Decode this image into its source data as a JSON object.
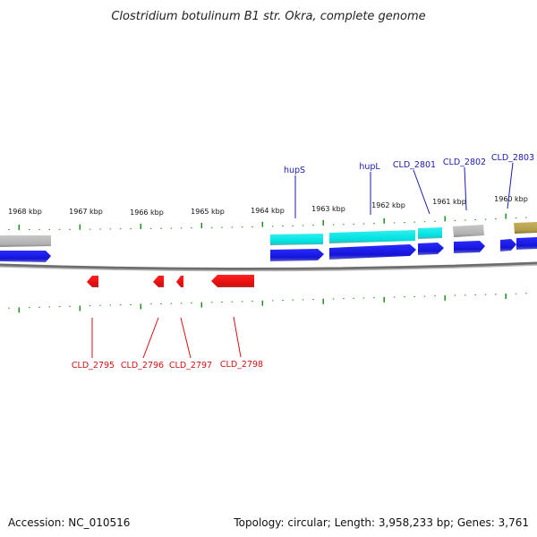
{
  "title": "Clostridium botulinum B1 str. Okra, complete genome",
  "footer": {
    "accession": "Accession: NC_010516",
    "summary": "Topology: circular; Length: 3,958,233 bp; Genes: 3,761"
  },
  "ticks": [
    "1968 kbp",
    "1967 kbp",
    "1966 kbp",
    "1965 kbp",
    "1964 kbp",
    "1963 kbp",
    "1962 kbp",
    "1961 kbp",
    "1960 kbp"
  ],
  "labels_top": [
    "hupS",
    "hupL",
    "CLD_2801",
    "CLD_2802",
    "CLD_2803"
  ],
  "labels_bottom": [
    "CLD_2795",
    "CLD_2796",
    "CLD_2797",
    "CLD_2798"
  ],
  "colors": {
    "forward_cds": "#1414e6",
    "reverse_cds": "#ee1111",
    "highlight": "#00e6e6",
    "grey_feature": "#b4b4b4",
    "olive_feature": "#b4a050",
    "tick": "#1e8c1e",
    "backbone": "#777777"
  }
}
